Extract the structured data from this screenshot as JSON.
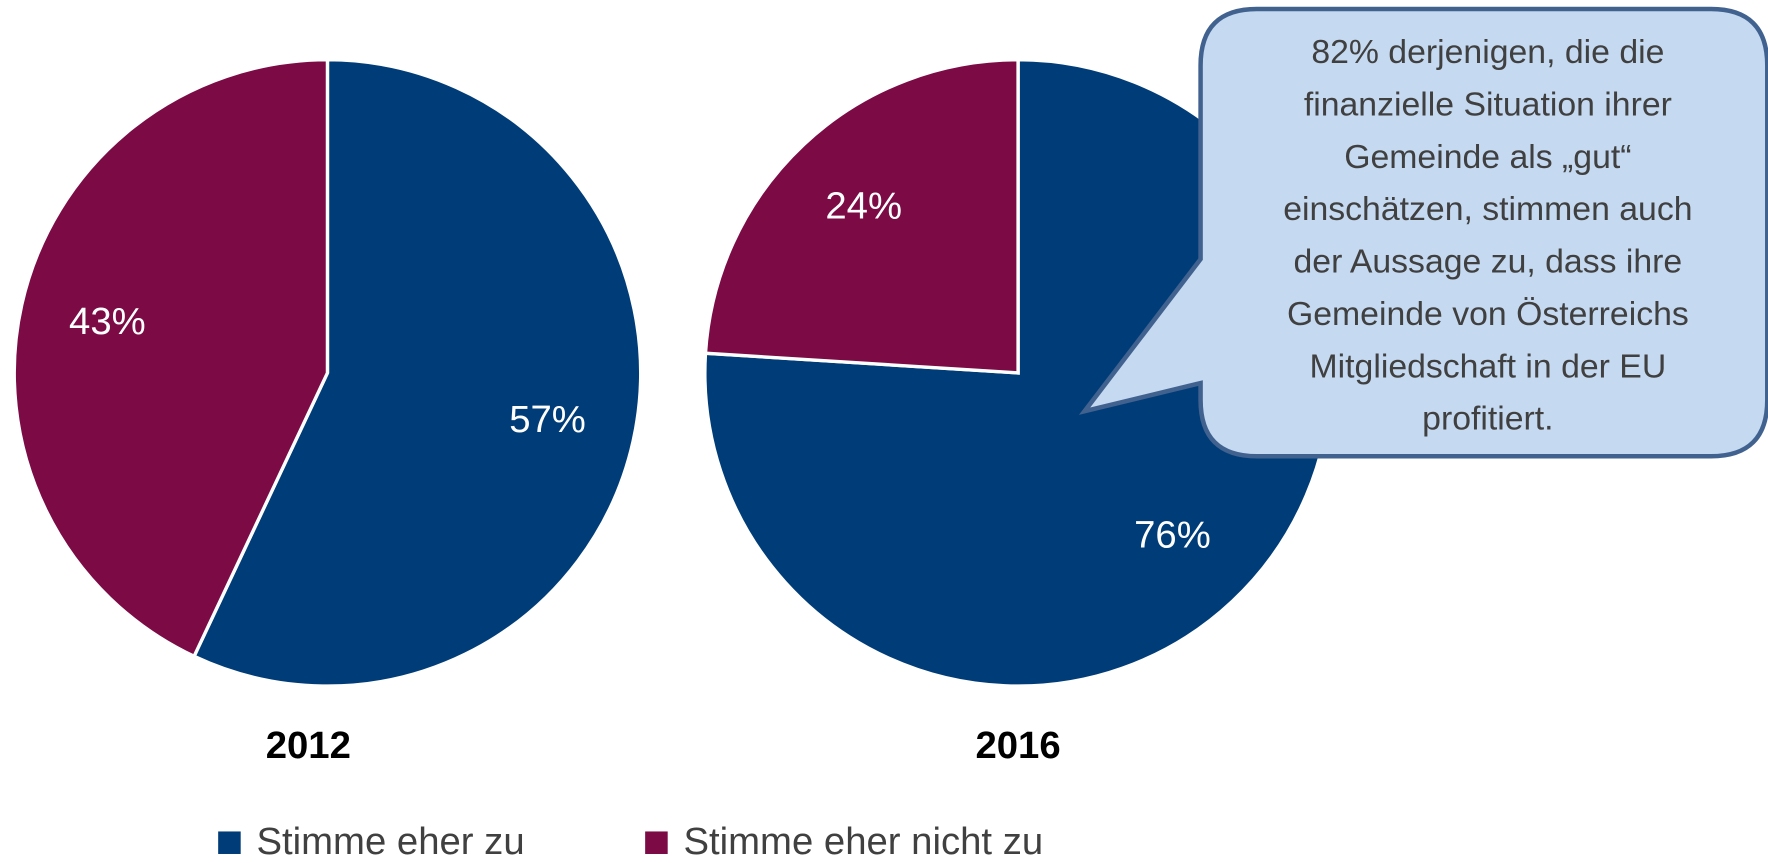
{
  "chart_data": [
    {
      "type": "pie",
      "title": "2012",
      "values": [
        57,
        43
      ],
      "value_labels": [
        "57%",
        "43%"
      ],
      "colors": [
        "#003d78",
        "#7b0a45"
      ]
    },
    {
      "type": "pie",
      "title": "2016",
      "values": [
        76,
        24
      ],
      "value_labels": [
        "76%",
        "24%"
      ],
      "colors": [
        "#003d78",
        "#7b0a45"
      ]
    }
  ],
  "legend": {
    "items": [
      {
        "name": "Stimme eher zu",
        "color": "#003d78"
      },
      {
        "name": "Stimme eher nicht zu",
        "color": "#7b0a45"
      }
    ]
  },
  "annotation": {
    "lines": [
      "82% derjenigen, die die",
      "finanzielle Situation ihrer",
      "Gemeinde als „gut“",
      "einschätzen, stimmen auch",
      "der Aussage zu, dass ihre",
      "Gemeinde von Österreichs",
      "Mitgliedschaft in der EU",
      "profitiert."
    ]
  }
}
